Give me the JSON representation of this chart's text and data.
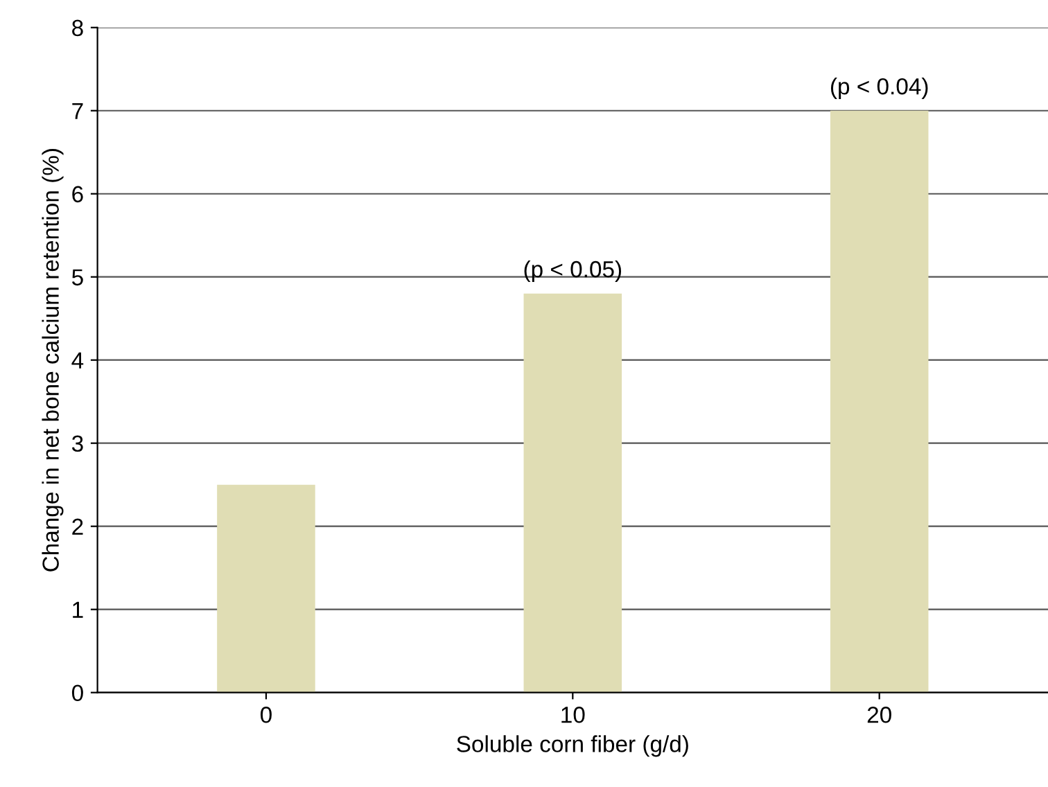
{
  "chart_data": {
    "type": "bar",
    "xlabel": "Soluble corn fiber (g/d)",
    "ylabel": "Change in net bone calcium retention (%)",
    "categories": [
      "0",
      "10",
      "20"
    ],
    "values": [
      2.5,
      4.8,
      7.0
    ],
    "color": "#e0ddb4",
    "ylim": [
      0,
      8
    ],
    "yticks": [
      0,
      1,
      2,
      3,
      4,
      5,
      6,
      7,
      8
    ],
    "grid": "y",
    "annotations": [
      {
        "text": "(p < 0.05)",
        "x": "10",
        "y": 4.8
      },
      {
        "text": "(p < 0.04)",
        "x": "20",
        "y": 7.0
      }
    ]
  }
}
